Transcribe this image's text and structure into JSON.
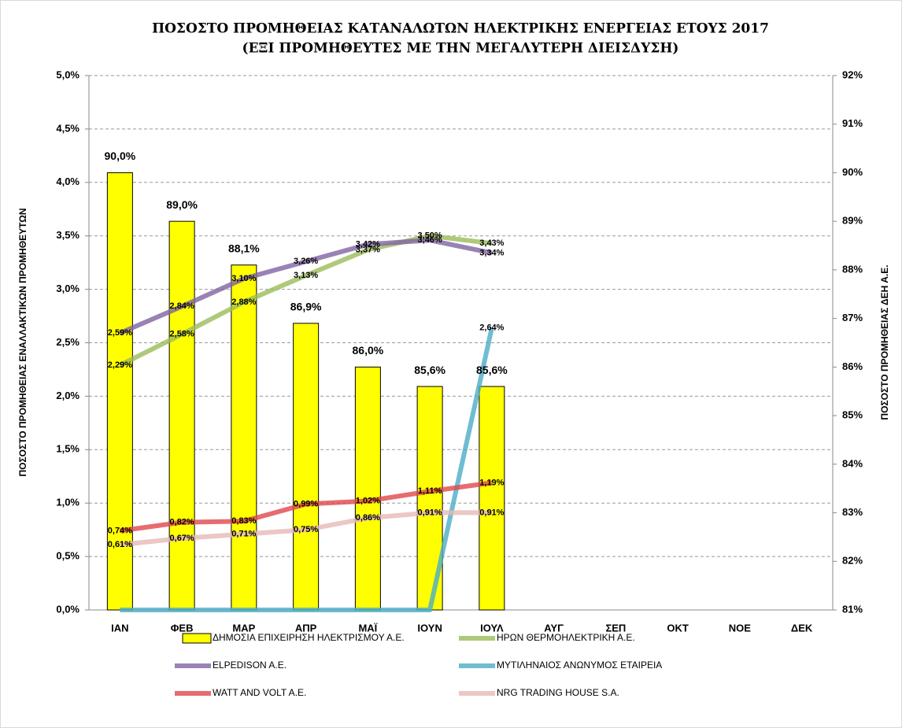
{
  "chart_data": {
    "type": "bar",
    "title": [
      "ΠΟΣΟΣΤΟ ΠΡΟΜΗΘΕΙΑΣ ΚΑΤΑΝΑΛΩΤΩΝ ΗΛΕΚΤΡΙΚΗΣ ΕΝΕΡΓΕΙΑΣ ΕΤΟΥΣ 2017",
      "(ΕΞΙ ΠΡΟΜΗΘΕΥΤΕΣ ΜΕ ΤΗΝ ΜΕΓΑΛΥΤΕΡΗ ΔΙΕΙΣΔΥΣΗ)"
    ],
    "y_label": "ΠΟΣΟΣΤΟ ΠΡΟΜΗΘΕΙΑΣ ΕΝΑΛΛΑΚΤΙΚΩΝ ΠΡΟΜΗΘΕΥΤΩΝ",
    "y2_label": "ΠΟΣΟΣΤΟ ΠΡΟΜΗΘΕΙΑΣ ΔΕΗ Α.Ε.",
    "categories": [
      "ΙΑΝ",
      "ΦΕΒ",
      "ΜΑΡ",
      "ΑΠΡ",
      "ΜΑΪ",
      "ΙΟΥΝ",
      "ΙΟΥΛ",
      "ΑΥΓ",
      "ΣΕΠ",
      "ΟΚΤ",
      "ΝΟΕ",
      "ΔΕΚ"
    ],
    "ylim": [
      0,
      5
    ],
    "yticks": [
      {
        "value": 0,
        "label": "0,0%"
      },
      {
        "value": 0.5,
        "label": "0,5%"
      },
      {
        "value": 1,
        "label": "1,0%"
      },
      {
        "value": 1.5,
        "label": "1,5%"
      },
      {
        "value": 2,
        "label": "2,0%"
      },
      {
        "value": 2.5,
        "label": "2,5%"
      },
      {
        "value": 3,
        "label": "3,0%"
      },
      {
        "value": 3.5,
        "label": "3,5%"
      },
      {
        "value": 4,
        "label": "4,0%"
      },
      {
        "value": 4.5,
        "label": "4,5%"
      },
      {
        "value": 5,
        "label": "5,0%"
      }
    ],
    "y2lim": [
      81,
      92
    ],
    "y2ticks": [
      {
        "value": 81,
        "label": "81%"
      },
      {
        "value": 82,
        "label": "82%"
      },
      {
        "value": 83,
        "label": "83%"
      },
      {
        "value": 84,
        "label": "84%"
      },
      {
        "value": 85,
        "label": "85%"
      },
      {
        "value": 86,
        "label": "86%"
      },
      {
        "value": 87,
        "label": "87%"
      },
      {
        "value": 88,
        "label": "88%"
      },
      {
        "value": 89,
        "label": "89%"
      },
      {
        "value": 90,
        "label": "90%"
      },
      {
        "value": 91,
        "label": "91%"
      },
      {
        "value": 92,
        "label": "92%"
      }
    ],
    "grid": true,
    "legend": "bottom",
    "series": [
      {
        "name": "ΔΗΜΟΣΙΑ ΕΠΙΧΕΙΡΗΣΗ ΗΛΕΚΤΡΙΣΜΟΥ Α.Ε.",
        "type": "bar",
        "axis": "y2",
        "color": "#ffff00",
        "values": [
          90.0,
          89.0,
          88.1,
          86.9,
          86.0,
          85.6,
          85.6,
          null,
          null,
          null,
          null,
          null
        ],
        "value_labels": [
          "90,0%",
          "89,0%",
          "88,1%",
          "86,9%",
          "86,0%",
          "85,6%",
          "85,6%",
          null,
          null,
          null,
          null,
          null
        ]
      },
      {
        "name": "ΗΡΩΝ ΘΕΡΜΟΗΛΕΚΤΡΙΚΗ Α.Ε.",
        "type": "line",
        "color": "#9bbb59",
        "values": [
          2.29,
          2.58,
          2.88,
          3.13,
          3.37,
          3.5,
          3.43,
          null,
          null,
          null,
          null,
          null
        ],
        "value_labels": [
          "2,29%",
          "2,58%",
          "2,88%",
          "3,13%",
          "3,37%",
          "3,50%",
          "3,43%",
          null,
          null,
          null,
          null,
          null
        ]
      },
      {
        "name": "ELPEDISON A.E.",
        "type": "line",
        "color": "#8064a2",
        "values": [
          2.59,
          2.84,
          3.1,
          3.26,
          3.42,
          3.46,
          3.34,
          null,
          null,
          null,
          null,
          null
        ],
        "value_labels": [
          "2,59%",
          "2,84%",
          "3,10%",
          "3,26%",
          "3,42%",
          "3,46%",
          "3,34%",
          null,
          null,
          null,
          null,
          null
        ]
      },
      {
        "name": "ΜΥΤΙΛΗΝΑΙΟΣ ΑΝΩΝΥΜΟΣ ΕΤΑΙΡΕΙΑ",
        "type": "line",
        "color": "#4bacc6",
        "values": [
          0,
          0,
          0,
          0,
          0,
          0,
          2.64,
          null,
          null,
          null,
          null,
          null
        ],
        "value_labels": [
          null,
          null,
          null,
          null,
          null,
          null,
          "2,64%",
          null,
          null,
          null,
          null,
          null
        ]
      },
      {
        "name": "WATT AND VOLT A.E.",
        "type": "line",
        "color": "#e0474c",
        "values": [
          0.74,
          0.82,
          0.83,
          0.99,
          1.02,
          1.11,
          1.19,
          null,
          null,
          null,
          null,
          null
        ],
        "value_labels": [
          "0,74%",
          "0,82%",
          "0,83%",
          "0,99%",
          "1,02%",
          "1,11%",
          "1,19%",
          null,
          null,
          null,
          null,
          null
        ]
      },
      {
        "name": "NRG TRADING HOUSE S.A.",
        "type": "line",
        "color": "#e6b9b8",
        "values": [
          0.61,
          0.67,
          0.71,
          0.75,
          0.86,
          0.91,
          0.91,
          null,
          null,
          null,
          null,
          null
        ],
        "value_labels": [
          "0,61%",
          "0,67%",
          "0,71%",
          "0,75%",
          "0,86%",
          "0,91%",
          "0,91%",
          null,
          null,
          null,
          null,
          null
        ]
      }
    ]
  }
}
